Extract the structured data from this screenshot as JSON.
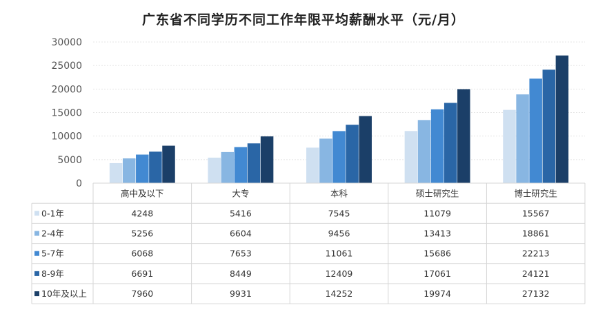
{
  "chart_data": {
    "type": "bar",
    "title": "广东省不同学历不同工作年限平均薪酬水平（元/月）",
    "categories": [
      "高中及以下",
      "大专",
      "本科",
      "硕士研究生",
      "博士研究生"
    ],
    "series": [
      {
        "name": "0-1年",
        "color": "#cfe0f1",
        "values": [
          4248,
          5416,
          7545,
          11079,
          15567
        ]
      },
      {
        "name": "2-4年",
        "color": "#88b6e2",
        "values": [
          5256,
          6604,
          9456,
          13413,
          18861
        ]
      },
      {
        "name": "5-7年",
        "color": "#4289d2",
        "values": [
          6068,
          7653,
          11061,
          15686,
          22213
        ]
      },
      {
        "name": "8-9年",
        "color": "#2a66a6",
        "values": [
          6691,
          8449,
          12409,
          17061,
          24121
        ]
      },
      {
        "name": "10年及以上",
        "color": "#1b3f68",
        "values": [
          7960,
          9931,
          14252,
          19974,
          27132
        ]
      }
    ],
    "ylim": [
      0,
      30000
    ],
    "yticks": [
      0,
      5000,
      10000,
      15000,
      20000,
      25000,
      30000
    ],
    "grid": true,
    "data_table": true
  }
}
